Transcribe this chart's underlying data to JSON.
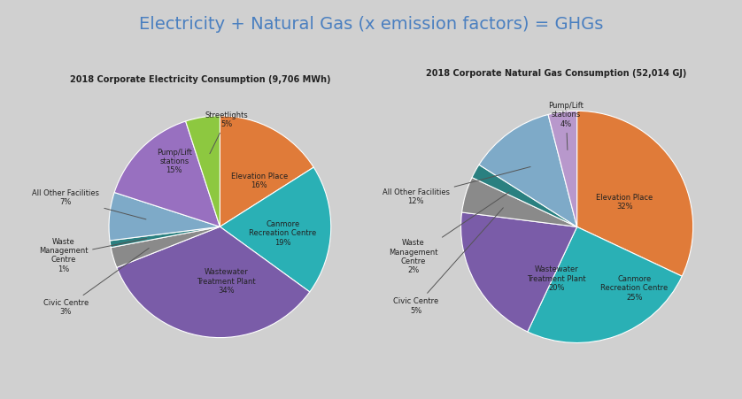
{
  "title": "Electricity + Natural Gas (x emission factors) = GHGs",
  "title_color": "#4a7fc0",
  "bg_color": "#d0d0d0",
  "elec_title": "2018 Corporate Electricity Consumption (9,706 MWh)",
  "elec_values": [
    16,
    19,
    34,
    3,
    1,
    7,
    15,
    5
  ],
  "elec_colors": [
    "#e07b39",
    "#2ab0b5",
    "#7a5ca8",
    "#8a8a8a",
    "#2a8080",
    "#7eaac8",
    "#9870c0",
    "#8dc840"
  ],
  "gas_title": "2018 Corporate Natural Gas Consumption (52,014 GJ)",
  "gas_values": [
    32,
    25,
    20,
    5,
    2,
    12,
    4
  ],
  "gas_colors": [
    "#e07b39",
    "#2ab0b5",
    "#7a5ca8",
    "#8a8a8a",
    "#2a8080",
    "#7eaac8",
    "#b898cc"
  ]
}
